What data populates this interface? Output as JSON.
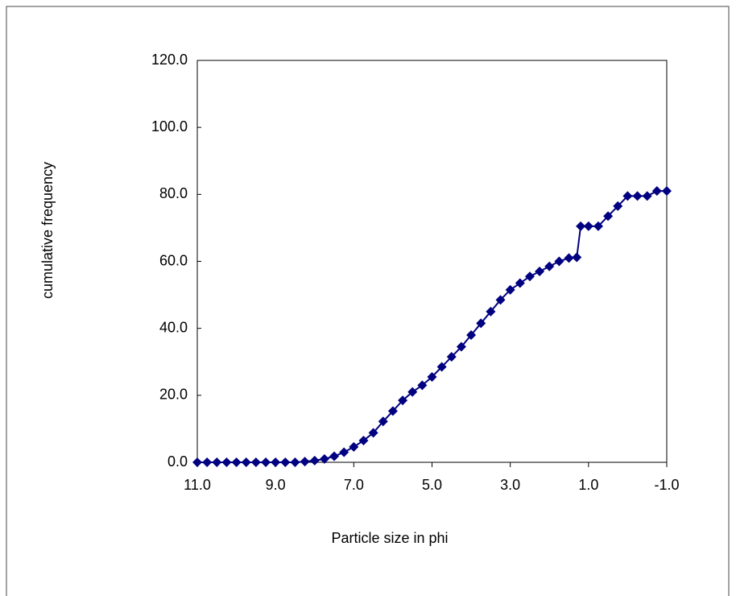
{
  "chart_data": {
    "type": "line",
    "x_label": "Particle size in phi",
    "y_label": "cumulative frequency",
    "x": [
      11,
      10.75,
      10.5,
      10.25,
      10,
      9.75,
      9.5,
      9.25,
      9,
      8.75,
      8.5,
      8.25,
      8,
      7.75,
      7.5,
      7.25,
      7,
      6.75,
      6.5,
      6.25,
      6,
      5.75,
      5.5,
      5.25,
      5,
      4.75,
      4.5,
      4.25,
      4,
      3.75,
      3.5,
      3.25,
      3,
      2.75,
      2.5,
      2.25,
      2,
      1.75,
      1.5,
      1.3,
      1.2,
      1,
      0.75,
      0.5,
      0.25,
      0,
      -0.25,
      -0.5,
      -0.75,
      -1
    ],
    "series": [
      {
        "color": "#000080",
        "values": [
          0,
          0,
          0,
          0,
          0,
          0,
          0,
          0,
          0,
          0,
          0,
          0.2,
          0.5,
          1.0,
          1.8,
          3.0,
          4.6,
          6.5,
          8.8,
          12.2,
          15.3,
          18.5,
          21,
          23,
          25.5,
          28.5,
          31.5,
          34.5,
          38,
          41.5,
          45,
          48.5,
          51.5,
          53.5,
          55.5,
          57,
          58.5,
          60,
          61,
          61.2,
          70.5,
          70.5,
          70.5,
          73.5,
          76.5,
          79.5,
          79.5,
          79.5,
          81,
          81
        ]
      }
    ],
    "xlim": [
      11,
      -1
    ],
    "ylim": [
      0,
      120
    ],
    "xticks": [
      {
        "value": 11,
        "label": "11.0"
      },
      {
        "value": 9,
        "label": "9.0"
      },
      {
        "value": 7,
        "label": "7.0"
      },
      {
        "value": 5,
        "label": "5.0"
      },
      {
        "value": 3,
        "label": "3.0"
      },
      {
        "value": 1,
        "label": "1.0"
      },
      {
        "value": -1,
        "label": "-1.0"
      }
    ],
    "yticks": [
      {
        "value": 0,
        "label": "0.0"
      },
      {
        "value": 20,
        "label": "20.0"
      },
      {
        "value": 40,
        "label": "40.0"
      },
      {
        "value": 60,
        "label": "60.0"
      },
      {
        "value": 80,
        "label": "80.0"
      },
      {
        "value": 100,
        "label": "100.0"
      },
      {
        "value": 120,
        "label": "120.0"
      }
    ],
    "grid": false
  }
}
